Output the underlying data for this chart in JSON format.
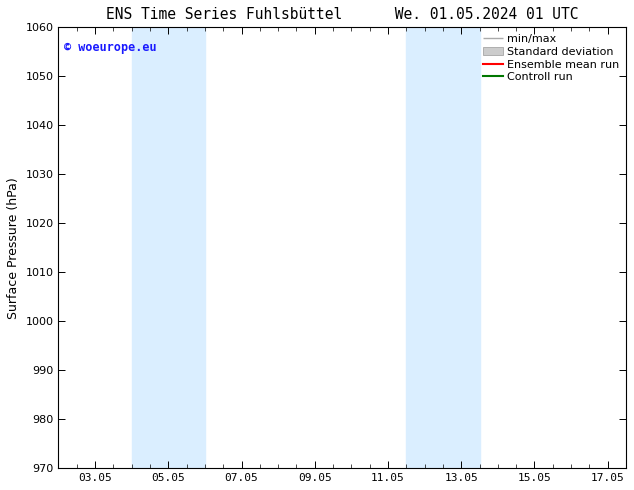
{
  "title_left": "ENS Time Series Fuhlsbüttel",
  "title_right": "We. 01.05.2024 01 UTC",
  "ylabel": "Surface Pressure (hPa)",
  "ylim": [
    970,
    1060
  ],
  "yticks": [
    970,
    980,
    990,
    1000,
    1010,
    1020,
    1030,
    1040,
    1050,
    1060
  ],
  "xlim_start": 0.0,
  "xlim_end": 15.5,
  "xtick_positions": [
    1.0,
    3.0,
    5.0,
    7.0,
    9.0,
    11.0,
    13.0,
    15.0
  ],
  "xtick_labels": [
    "03.05",
    "05.05",
    "07.05",
    "09.05",
    "11.05",
    "13.05",
    "15.05",
    "17.05"
  ],
  "shaded_bands": [
    {
      "x_start": 2.0,
      "x_end": 4.0
    },
    {
      "x_start": 9.5,
      "x_end": 11.5
    }
  ],
  "shade_color": "#daeeff",
  "watermark_text": "© woeurope.eu",
  "watermark_color": "#1a1aff",
  "legend_labels": [
    "min/max",
    "Standard deviation",
    "Ensemble mean run",
    "Controll run"
  ],
  "legend_colors": [
    "#aaaaaa",
    "#cccccc",
    "#ff0000",
    "#007700"
  ],
  "background_color": "#ffffff",
  "title_fontsize": 10.5,
  "label_fontsize": 9,
  "tick_fontsize": 8,
  "legend_fontsize": 8,
  "watermark_fontsize": 8.5
}
